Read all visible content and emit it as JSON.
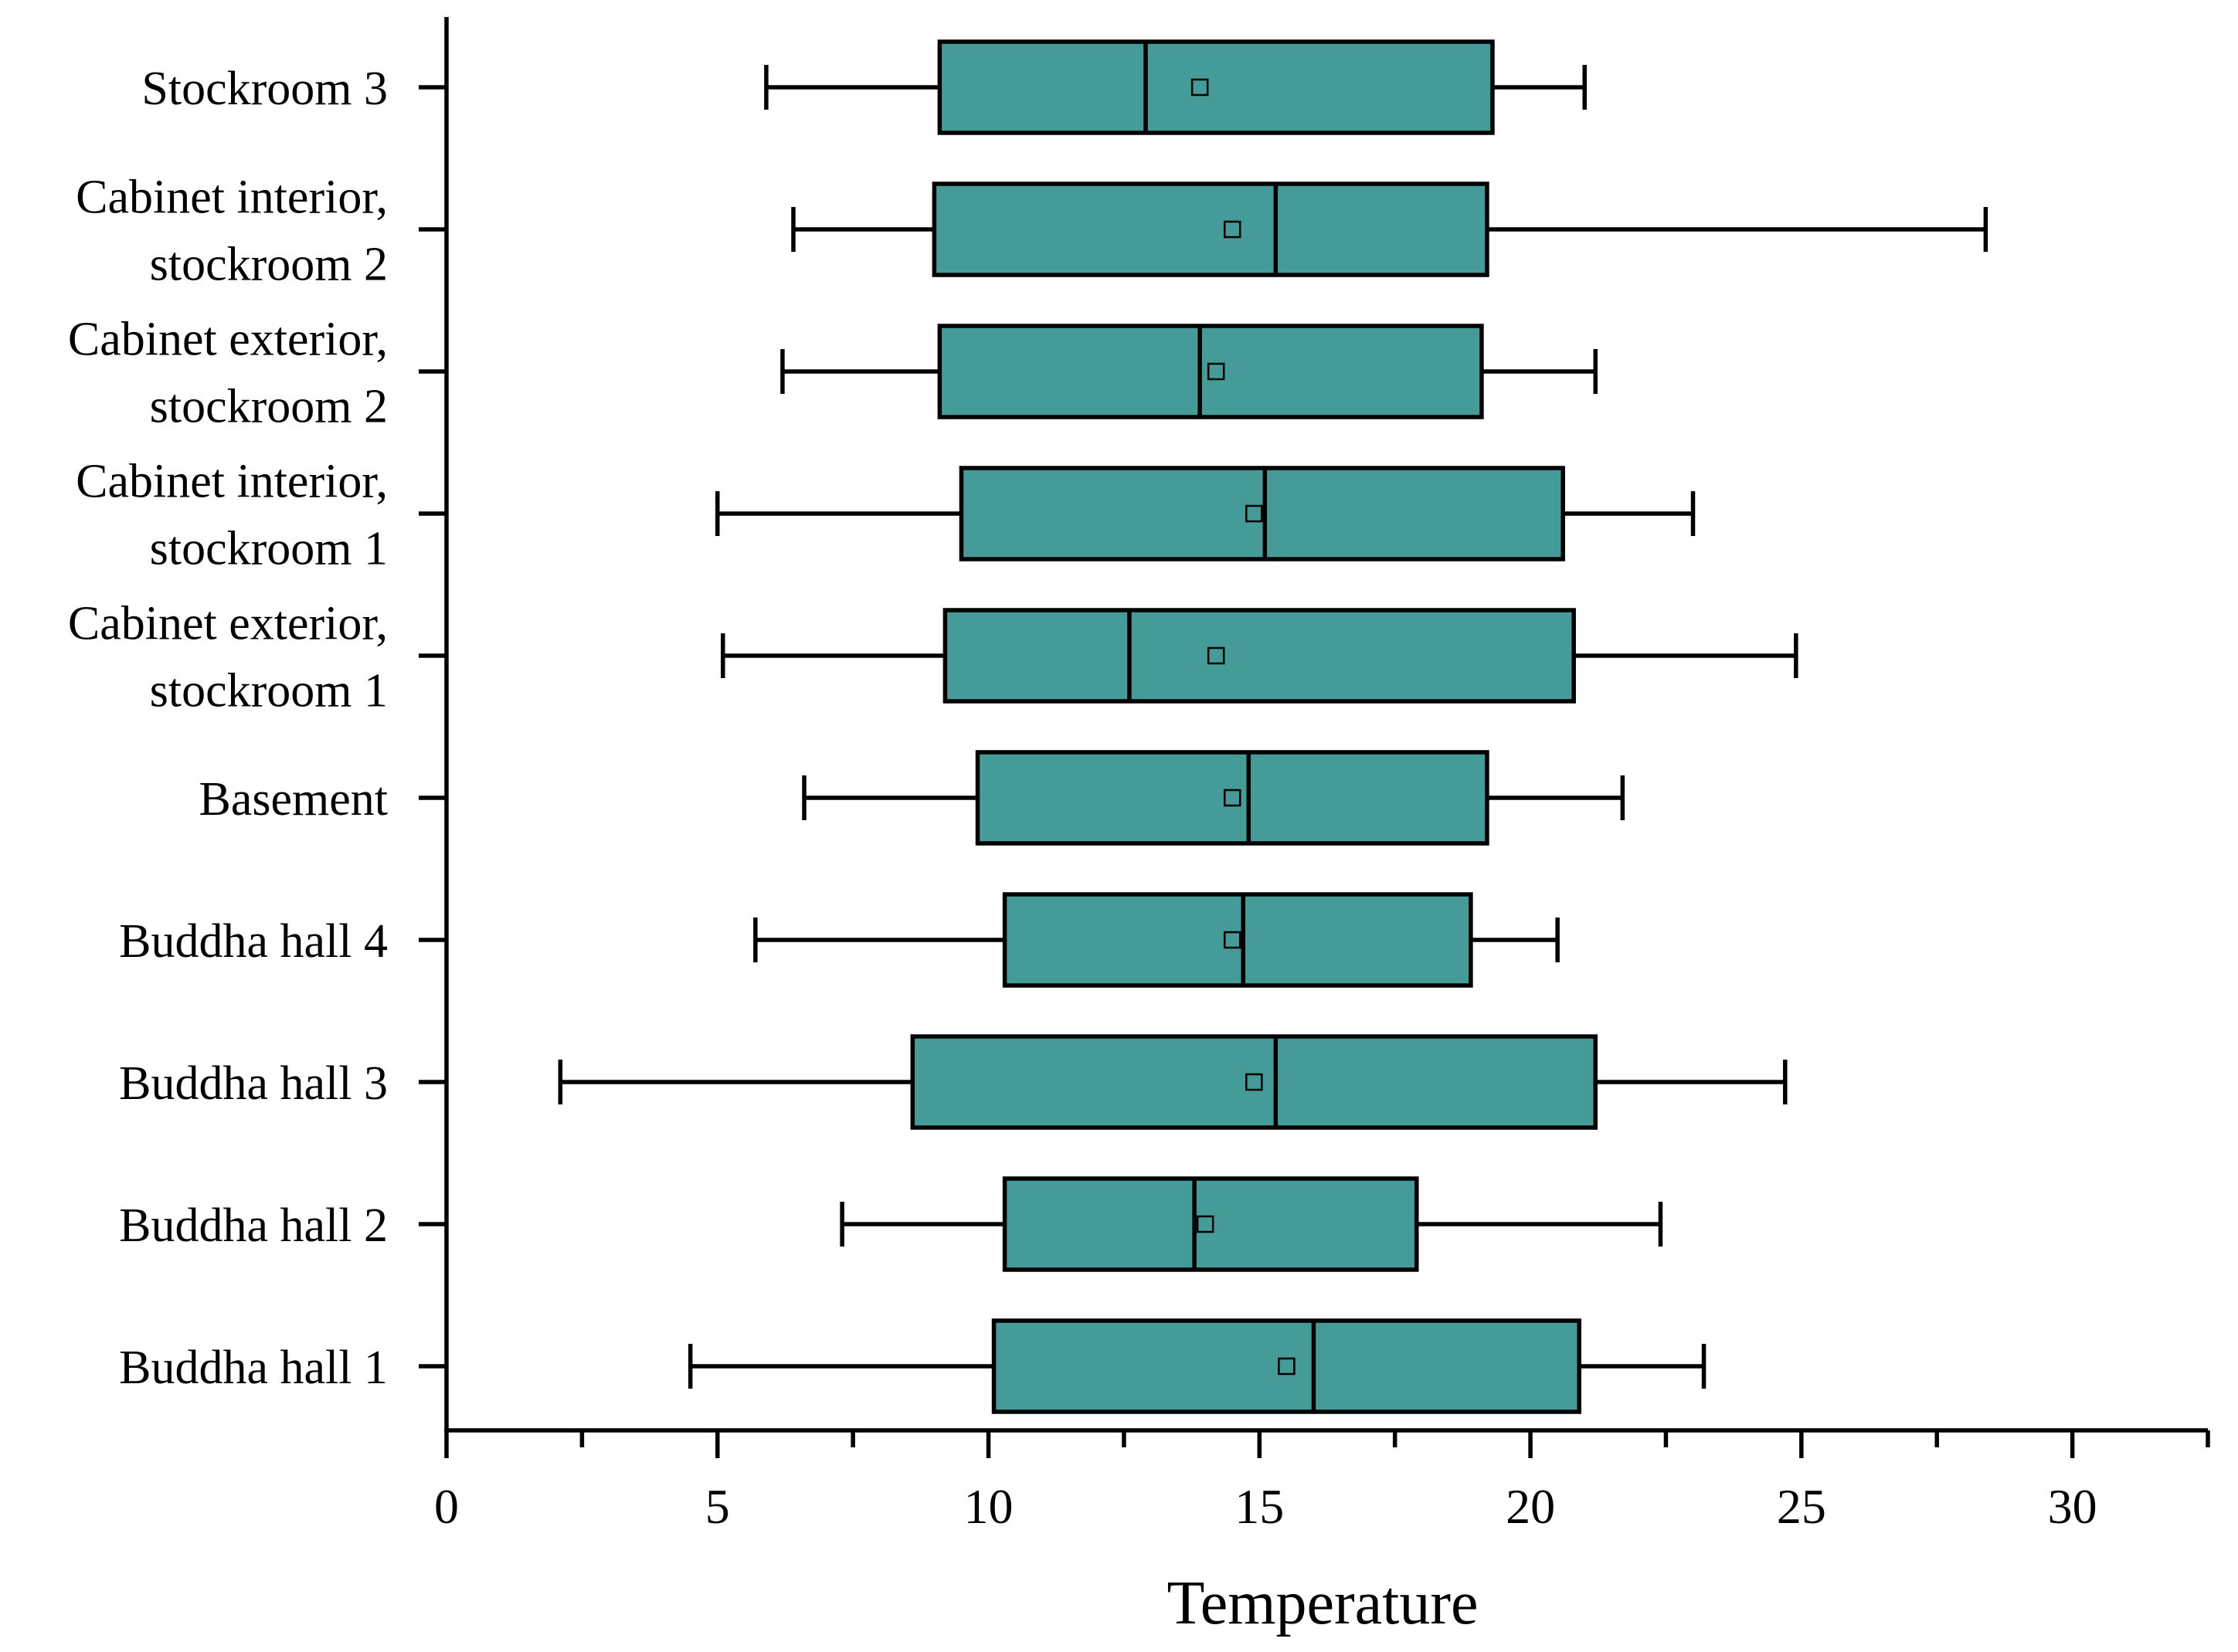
{
  "chart_data": {
    "type": "boxplot",
    "orientation": "horizontal",
    "title": "",
    "xlabel": "Temperature",
    "ylabel": "",
    "xlim": [
      0,
      32.5
    ],
    "x_ticks": [
      0,
      5,
      10,
      15,
      20,
      25,
      30
    ],
    "x_minor_ticks": [
      2.5,
      7.5,
      12.5,
      17.5,
      22.5,
      27.5,
      32.5
    ],
    "grid": false,
    "box_color": "#459b98",
    "line_color": "#000000",
    "categories": [
      {
        "label": [
          "Stockroom 3"
        ],
        "whisker_low": 5.9,
        "q1": 9.1,
        "median": 12.9,
        "mean": 13.9,
        "q3": 19.3,
        "whisker_high": 21.0
      },
      {
        "label": [
          "Cabinet interior,",
          "stockroom 2"
        ],
        "whisker_low": 6.4,
        "q1": 9.0,
        "median": 15.3,
        "mean": 14.5,
        "q3": 19.2,
        "whisker_high": 28.4
      },
      {
        "label": [
          "Cabinet exterior,",
          "stockroom 2"
        ],
        "whisker_low": 6.2,
        "q1": 9.1,
        "median": 13.9,
        "mean": 14.2,
        "q3": 19.1,
        "whisker_high": 21.2
      },
      {
        "label": [
          "Cabinet interior,",
          "stockroom 1"
        ],
        "whisker_low": 5.0,
        "q1": 9.5,
        "median": 15.1,
        "mean": 14.9,
        "q3": 20.6,
        "whisker_high": 23.0
      },
      {
        "label": [
          "Cabinet exterior,",
          "stockroom 1"
        ],
        "whisker_low": 5.1,
        "q1": 9.2,
        "median": 12.6,
        "mean": 14.2,
        "q3": 20.8,
        "whisker_high": 24.9
      },
      {
        "label": [
          "Basement"
        ],
        "whisker_low": 6.6,
        "q1": 9.8,
        "median": 14.8,
        "mean": 14.5,
        "q3": 19.2,
        "whisker_high": 21.7
      },
      {
        "label": [
          "Buddha hall 4"
        ],
        "whisker_low": 5.7,
        "q1": 10.3,
        "median": 14.7,
        "mean": 14.5,
        "q3": 18.9,
        "whisker_high": 20.5
      },
      {
        "label": [
          "Buddha hall 3"
        ],
        "whisker_low": 2.1,
        "q1": 8.6,
        "median": 15.3,
        "mean": 14.9,
        "q3": 21.2,
        "whisker_high": 24.7
      },
      {
        "label": [
          "Buddha hall 2"
        ],
        "whisker_low": 7.3,
        "q1": 10.3,
        "median": 13.8,
        "mean": 14.0,
        "q3": 17.9,
        "whisker_high": 22.4
      },
      {
        "label": [
          "Buddha hall 1"
        ],
        "whisker_low": 4.5,
        "q1": 10.1,
        "median": 16.0,
        "mean": 15.5,
        "q3": 20.9,
        "whisker_high": 23.2
      }
    ]
  }
}
